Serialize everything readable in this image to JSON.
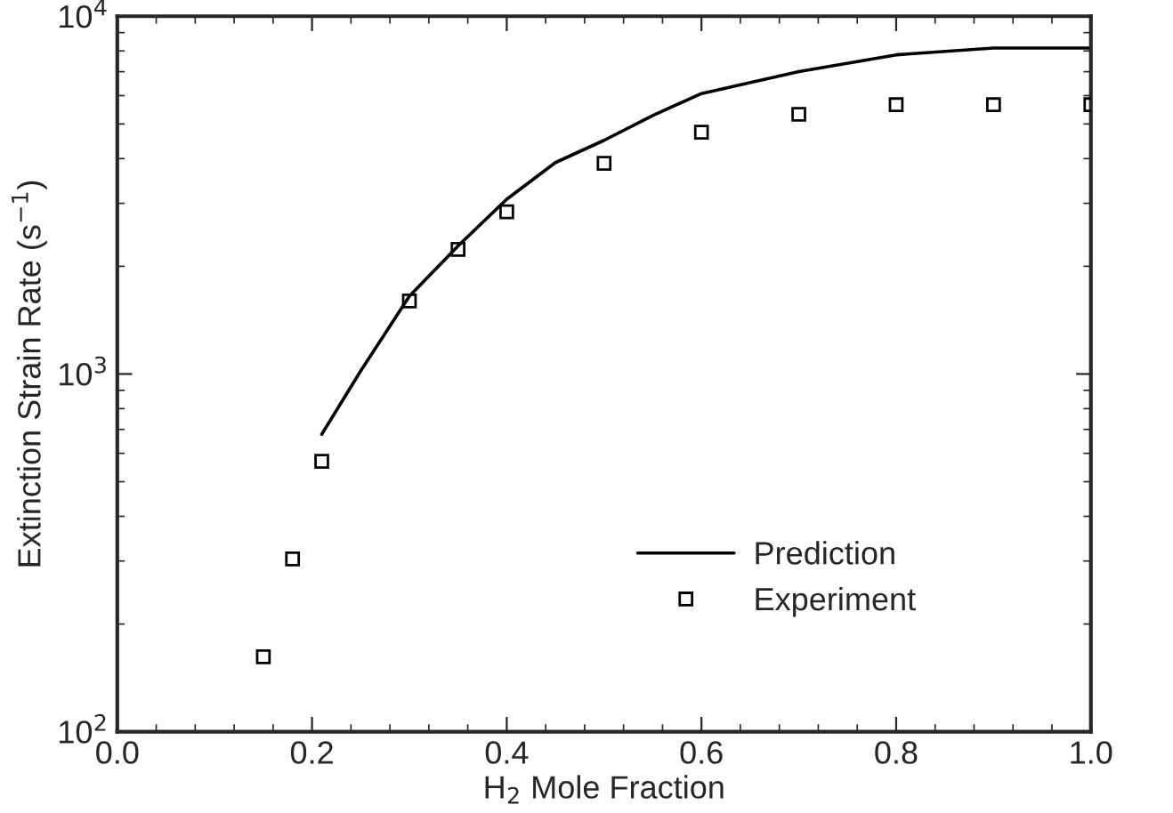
{
  "chart_data": {
    "type": "line",
    "xlabel": "H$_{2}$ Mole Fraction",
    "ylabel": "Extinction Strain Rate (s$^{−1}$)",
    "log": "y",
    "xlim": [
      0.0,
      1.0
    ],
    "xticks": [
      {
        "value": 0.0,
        "label": "0.0"
      },
      0.2,
      0.4,
      0.6,
      0.8,
      {
        "value": 1.0,
        "label": "1.0"
      }
    ],
    "ylim": [
      100,
      10000
    ],
    "yticks": [
      {
        "value": 100,
        "label": "10$^{2}$"
      },
      {
        "value": 1000,
        "label": "10$^{3}$"
      },
      {
        "value": 10000,
        "label": "10$^{4}$"
      }
    ],
    "grid": false,
    "legend": "bottom right",
    "series": [
      {
        "name": "Prediction",
        "type": "line",
        "color": "#000000",
        "marker": "none",
        "line_style": "solid",
        "x": [
          0.21,
          0.25,
          0.3,
          0.35,
          0.4,
          0.45,
          0.5,
          0.55,
          0.6,
          0.7,
          0.8,
          0.9,
          1.0
        ],
        "values": [
          678,
          1020,
          1650,
          2280,
          3080,
          3900,
          4500,
          5280,
          6080,
          7000,
          7800,
          8150,
          8150
        ]
      },
      {
        "name": "Experiment",
        "type": "scatter",
        "color": "#000000",
        "marker": "square",
        "x": [
          0.15,
          0.18,
          0.21,
          0.3,
          0.35,
          0.4,
          0.5,
          0.6,
          0.7,
          0.8,
          0.9,
          1.0
        ],
        "values": [
          162,
          304,
          570,
          1600,
          2230,
          2840,
          3880,
          4740,
          5320,
          5660,
          5660,
          5660
        ]
      }
    ]
  }
}
